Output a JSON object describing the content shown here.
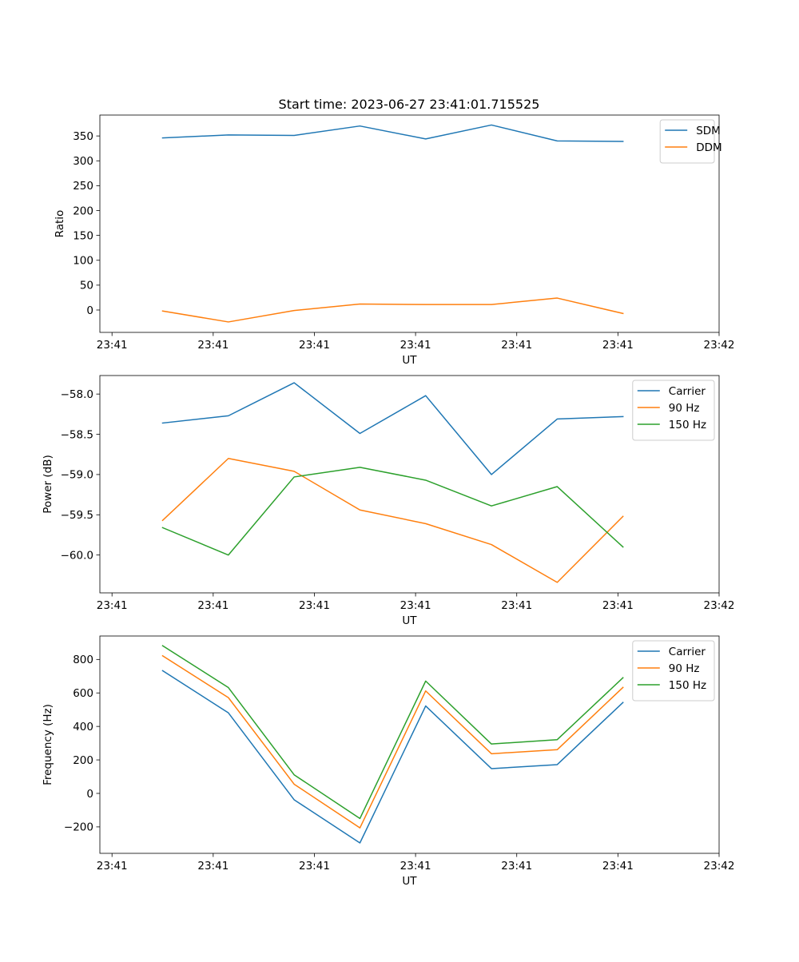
{
  "figure": {
    "title": "Start time: 2023-06-27 23:41:01.715525",
    "background": "#ffffff"
  },
  "colors": {
    "blue": "#1f77b4",
    "orange": "#ff7f0e",
    "green": "#2ca02c"
  },
  "chart_data": [
    {
      "type": "line",
      "title": "Start time: 2023-06-27 23:41:01.715525",
      "xlabel": "UT",
      "ylabel": "Ratio",
      "x_tick_labels": [
        "23:41",
        "23:41",
        "23:41",
        "23:41",
        "23:41",
        "23:41",
        "23:42"
      ],
      "x_ticks": [
        0,
        1,
        2,
        3,
        4,
        5,
        6
      ],
      "xlim": [
        -0.12,
        6.0
      ],
      "x": [
        0.5,
        1.15,
        1.8,
        2.45,
        3.1,
        3.75,
        4.4,
        5.05
      ],
      "ylim": [
        -45,
        392
      ],
      "yticks": [
        0,
        50,
        100,
        150,
        200,
        250,
        300,
        350
      ],
      "legend_loc": "upper right",
      "series": [
        {
          "name": "SDM",
          "color": "#1f77b4",
          "values": [
            346,
            352,
            351,
            370,
            344,
            372,
            340,
            339
          ]
        },
        {
          "name": "DDM",
          "color": "#ff7f0e",
          "values": [
            -2,
            -24,
            -1,
            12,
            11,
            11,
            24,
            -7
          ]
        }
      ]
    },
    {
      "type": "line",
      "title": "",
      "xlabel": "UT",
      "ylabel": "Power (dB)",
      "x_tick_labels": [
        "23:41",
        "23:41",
        "23:41",
        "23:41",
        "23:41",
        "23:41",
        "23:42"
      ],
      "x_ticks": [
        0,
        1,
        2,
        3,
        4,
        5,
        6
      ],
      "xlim": [
        -0.12,
        6.0
      ],
      "x": [
        0.5,
        1.15,
        1.8,
        2.45,
        3.1,
        3.75,
        4.4,
        5.05
      ],
      "ylim": [
        -60.47,
        -57.77
      ],
      "yticks": [
        -60.0,
        -59.5,
        -59.0,
        -58.5,
        -58.0
      ],
      "ytick_labels": [
        "−60.0",
        "−59.5",
        "−59.0",
        "−58.5",
        "−58.0"
      ],
      "legend_loc": "upper right",
      "series": [
        {
          "name": "Carrier",
          "color": "#1f77b4",
          "values": [
            -58.36,
            -58.27,
            -57.86,
            -58.49,
            -58.02,
            -59.0,
            -58.31,
            -58.28
          ]
        },
        {
          "name": "90 Hz",
          "color": "#ff7f0e",
          "values": [
            -59.57,
            -58.8,
            -58.96,
            -59.44,
            -59.61,
            -59.87,
            -60.34,
            -59.52
          ]
        },
        {
          "name": "150 Hz",
          "color": "#2ca02c",
          "values": [
            -59.66,
            -60.0,
            -59.03,
            -58.91,
            -59.07,
            -59.39,
            -59.15,
            -59.9
          ]
        }
      ]
    },
    {
      "type": "line",
      "title": "",
      "xlabel": "UT",
      "ylabel": "Frequency (Hz)",
      "x_tick_labels": [
        "23:41",
        "23:41",
        "23:41",
        "23:41",
        "23:41",
        "23:41",
        "23:42"
      ],
      "x_ticks": [
        0,
        1,
        2,
        3,
        4,
        5,
        6
      ],
      "xlim": [
        -0.12,
        6.0
      ],
      "x": [
        0.5,
        1.15,
        1.8,
        2.45,
        3.1,
        3.75,
        4.4,
        5.05
      ],
      "ylim": [
        -358,
        940
      ],
      "yticks": [
        -200,
        0,
        200,
        400,
        600,
        800
      ],
      "ytick_labels": [
        "−200",
        "0",
        "200",
        "400",
        "600",
        "800"
      ],
      "legend_loc": "upper right",
      "series": [
        {
          "name": "Carrier",
          "color": "#1f77b4",
          "values": [
            733,
            481,
            -38,
            -296,
            522,
            148,
            172,
            543
          ]
        },
        {
          "name": "90 Hz",
          "color": "#ff7f0e",
          "values": [
            822,
            572,
            55,
            -206,
            612,
            237,
            261,
            633
          ]
        },
        {
          "name": "150 Hz",
          "color": "#2ca02c",
          "values": [
            882,
            632,
            111,
            -150,
            671,
            295,
            321,
            691
          ]
        }
      ]
    }
  ]
}
